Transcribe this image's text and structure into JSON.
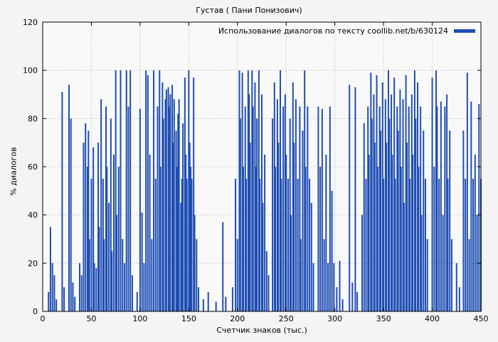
{
  "title": "Густав ( Пани Понизович)",
  "legend": {
    "label": "Использование диалогов по тексту coollib.net/b/630124"
  },
  "chart_data": {
    "type": "bar",
    "title": "Густав ( Пани Понизович)",
    "xlabel": "Счетчик знаков (тыс.)",
    "ylabel": "% диалогов",
    "legend": "Использование диалогов по тексту coollib.net/b/630124",
    "xlim": [
      0,
      450
    ],
    "ylim": [
      0,
      120
    ],
    "xticks": [
      0,
      50,
      100,
      150,
      200,
      250,
      300,
      350,
      400,
      450
    ],
    "yticks": [
      0,
      20,
      40,
      60,
      80,
      100,
      120
    ],
    "grid": true,
    "legend_position": "top-right",
    "bar_color": "#1f4eb4",
    "points": [
      [
        6,
        8
      ],
      [
        8,
        35
      ],
      [
        10,
        20
      ],
      [
        12,
        15
      ],
      [
        14,
        5
      ],
      [
        20,
        91
      ],
      [
        22,
        10
      ],
      [
        27,
        94
      ],
      [
        29,
        80
      ],
      [
        31,
        12
      ],
      [
        33,
        6
      ],
      [
        38,
        20
      ],
      [
        40,
        15
      ],
      [
        42,
        70
      ],
      [
        44,
        78
      ],
      [
        46,
        60
      ],
      [
        47,
        75
      ],
      [
        48,
        30
      ],
      [
        50,
        55
      ],
      [
        52,
        68
      ],
      [
        53,
        20
      ],
      [
        55,
        18
      ],
      [
        57,
        70
      ],
      [
        58,
        35
      ],
      [
        60,
        88
      ],
      [
        62,
        55
      ],
      [
        63,
        30
      ],
      [
        65,
        85
      ],
      [
        66,
        60
      ],
      [
        68,
        45
      ],
      [
        70,
        80
      ],
      [
        71,
        25
      ],
      [
        73,
        65
      ],
      [
        75,
        100
      ],
      [
        76,
        40
      ],
      [
        78,
        60
      ],
      [
        80,
        100
      ],
      [
        82,
        30
      ],
      [
        84,
        20
      ],
      [
        86,
        100
      ],
      [
        88,
        85
      ],
      [
        90,
        100
      ],
      [
        92,
        15
      ],
      [
        97,
        8
      ],
      [
        100,
        84
      ],
      [
        102,
        41
      ],
      [
        104,
        20
      ],
      [
        106,
        100
      ],
      [
        108,
        98
      ],
      [
        110,
        65
      ],
      [
        112,
        30
      ],
      [
        114,
        100
      ],
      [
        116,
        55
      ],
      [
        118,
        85
      ],
      [
        120,
        100
      ],
      [
        121,
        60
      ],
      [
        123,
        95
      ],
      [
        124,
        80
      ],
      [
        126,
        88
      ],
      [
        127,
        92
      ],
      [
        129,
        93
      ],
      [
        130,
        85
      ],
      [
        131,
        90
      ],
      [
        133,
        94
      ],
      [
        134,
        70
      ],
      [
        135,
        88
      ],
      [
        137,
        75
      ],
      [
        138,
        60
      ],
      [
        139,
        82
      ],
      [
        140,
        88
      ],
      [
        142,
        45
      ],
      [
        143,
        55
      ],
      [
        144,
        78
      ],
      [
        146,
        97
      ],
      [
        147,
        65
      ],
      [
        148,
        55
      ],
      [
        150,
        100
      ],
      [
        151,
        70
      ],
      [
        152,
        60
      ],
      [
        153,
        55
      ],
      [
        155,
        97
      ],
      [
        156,
        40
      ],
      [
        158,
        30
      ],
      [
        160,
        10
      ],
      [
        165,
        5
      ],
      [
        170,
        8
      ],
      [
        178,
        4
      ],
      [
        185,
        37
      ],
      [
        188,
        6
      ],
      [
        195,
        10
      ],
      [
        198,
        55
      ],
      [
        200,
        30
      ],
      [
        202,
        100
      ],
      [
        203,
        80
      ],
      [
        205,
        99
      ],
      [
        206,
        60
      ],
      [
        208,
        85
      ],
      [
        209,
        55
      ],
      [
        211,
        100
      ],
      [
        212,
        90
      ],
      [
        213,
        70
      ],
      [
        215,
        100
      ],
      [
        216,
        85
      ],
      [
        218,
        95
      ],
      [
        219,
        60
      ],
      [
        220,
        80
      ],
      [
        222,
        100
      ],
      [
        223,
        55
      ],
      [
        225,
        90
      ],
      [
        226,
        45
      ],
      [
        228,
        65
      ],
      [
        230,
        25
      ],
      [
        232,
        15
      ],
      [
        236,
        80
      ],
      [
        238,
        95
      ],
      [
        239,
        60
      ],
      [
        241,
        88
      ],
      [
        242,
        70
      ],
      [
        244,
        100
      ],
      [
        245,
        55
      ],
      [
        247,
        85
      ],
      [
        249,
        90
      ],
      [
        250,
        65
      ],
      [
        252,
        55
      ],
      [
        254,
        80
      ],
      [
        255,
        40
      ],
      [
        257,
        95
      ],
      [
        258,
        70
      ],
      [
        260,
        88
      ],
      [
        262,
        55
      ],
      [
        264,
        85
      ],
      [
        265,
        30
      ],
      [
        267,
        75
      ],
      [
        269,
        100
      ],
      [
        270,
        60
      ],
      [
        272,
        85
      ],
      [
        274,
        55
      ],
      [
        276,
        45
      ],
      [
        278,
        20
      ],
      [
        283,
        85
      ],
      [
        285,
        60
      ],
      [
        287,
        84
      ],
      [
        289,
        30
      ],
      [
        291,
        65
      ],
      [
        293,
        20
      ],
      [
        295,
        85
      ],
      [
        297,
        50
      ],
      [
        299,
        20
      ],
      [
        302,
        10
      ],
      [
        305,
        21
      ],
      [
        308,
        5
      ],
      [
        315,
        94
      ],
      [
        318,
        12
      ],
      [
        321,
        93
      ],
      [
        323,
        8
      ],
      [
        328,
        40
      ],
      [
        330,
        78
      ],
      [
        332,
        55
      ],
      [
        334,
        85
      ],
      [
        335,
        65
      ],
      [
        337,
        99
      ],
      [
        338,
        80
      ],
      [
        340,
        90
      ],
      [
        341,
        70
      ],
      [
        343,
        98
      ],
      [
        344,
        60
      ],
      [
        346,
        85
      ],
      [
        347,
        75
      ],
      [
        349,
        95
      ],
      [
        350,
        55
      ],
      [
        352,
        88
      ],
      [
        353,
        70
      ],
      [
        355,
        100
      ],
      [
        356,
        80
      ],
      [
        358,
        90
      ],
      [
        359,
        65
      ],
      [
        361,
        97
      ],
      [
        362,
        55
      ],
      [
        364,
        85
      ],
      [
        365,
        75
      ],
      [
        367,
        92
      ],
      [
        368,
        60
      ],
      [
        370,
        88
      ],
      [
        371,
        45
      ],
      [
        373,
        98
      ],
      [
        374,
        70
      ],
      [
        376,
        85
      ],
      [
        377,
        55
      ],
      [
        379,
        90
      ],
      [
        380,
        65
      ],
      [
        382,
        100
      ],
      [
        383,
        80
      ],
      [
        385,
        95
      ],
      [
        386,
        60
      ],
      [
        388,
        85
      ],
      [
        389,
        40
      ],
      [
        391,
        75
      ],
      [
        393,
        55
      ],
      [
        395,
        30
      ],
      [
        400,
        97
      ],
      [
        402,
        60
      ],
      [
        404,
        100
      ],
      [
        405,
        85
      ],
      [
        407,
        55
      ],
      [
        409,
        87
      ],
      [
        411,
        40
      ],
      [
        413,
        85
      ],
      [
        415,
        90
      ],
      [
        416,
        55
      ],
      [
        418,
        75
      ],
      [
        420,
        30
      ],
      [
        425,
        20
      ],
      [
        428,
        10
      ],
      [
        432,
        75
      ],
      [
        434,
        55
      ],
      [
        436,
        99
      ],
      [
        438,
        30
      ],
      [
        440,
        87
      ],
      [
        442,
        55
      ],
      [
        444,
        65
      ],
      [
        446,
        40
      ],
      [
        448,
        86
      ],
      [
        450,
        55
      ]
    ]
  }
}
